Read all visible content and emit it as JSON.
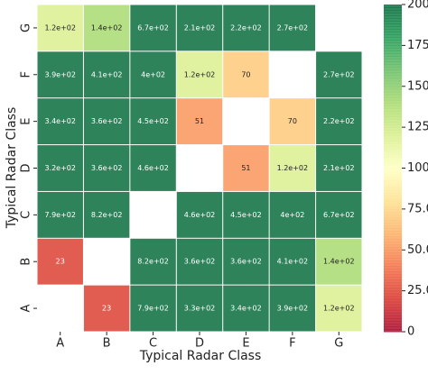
{
  "chart_data": {
    "type": "heatmap",
    "xlabel": "Typical Radar Class",
    "ylabel": "Typical Radar Class",
    "x_categories": [
      "A",
      "B",
      "C",
      "D",
      "E",
      "F",
      "G"
    ],
    "y_categories": [
      "G",
      "F",
      "E",
      "D",
      "C",
      "B",
      "A"
    ],
    "values": [
      [
        120,
        140,
        670,
        210,
        220,
        270,
        null
      ],
      [
        390,
        410,
        400,
        120,
        70,
        null,
        270
      ],
      [
        340,
        360,
        450,
        51,
        null,
        70,
        220
      ],
      [
        320,
        360,
        460,
        null,
        51,
        120,
        210
      ],
      [
        790,
        820,
        null,
        460,
        450,
        400,
        670
      ],
      [
        23,
        null,
        820,
        360,
        360,
        410,
        140
      ],
      [
        null,
        23,
        790,
        330,
        340,
        390,
        120
      ]
    ],
    "value_labels": [
      [
        "1.2e+02",
        "1.4e+02",
        "6.7e+02",
        "2.1e+02",
        "2.2e+02",
        "2.7e+02",
        null
      ],
      [
        "3.9e+02",
        "4.1e+02",
        "4e+02",
        "1.2e+02",
        "70",
        null,
        "2.7e+02"
      ],
      [
        "3.4e+02",
        "3.6e+02",
        "4.5e+02",
        "51",
        null,
        "70",
        "2.2e+02"
      ],
      [
        "3.2e+02",
        "3.6e+02",
        "4.6e+02",
        null,
        "51",
        "1.2e+02",
        "2.1e+02"
      ],
      [
        "7.9e+02",
        "8.2e+02",
        null,
        "4.6e+02",
        "4.5e+02",
        "4e+02",
        "6.7e+02"
      ],
      [
        "23",
        null,
        "8.2e+02",
        "3.6e+02",
        "3.6e+02",
        "4.1e+02",
        "1.4e+02"
      ],
      [
        null,
        "23",
        "7.9e+02",
        "3.3e+02",
        "3.4e+02",
        "3.9e+02",
        "1.2e+02"
      ]
    ],
    "cmap": "RdYlGn",
    "clim": [
      0,
      200
    ],
    "cticks": [
      0,
      {
        "value": 25,
        "label": "25.0"
      },
      {
        "value": 50,
        "label": "50.0"
      },
      {
        "value": 75,
        "label": "75.0"
      },
      {
        "value": 100,
        "label": "100.0"
      },
      {
        "value": 125,
        "label": "125.0"
      },
      {
        "value": 150,
        "label": "150.0"
      },
      {
        "value": 175,
        "label": "175.0"
      },
      {
        "value": 200,
        "label": "200.0"
      }
    ]
  }
}
